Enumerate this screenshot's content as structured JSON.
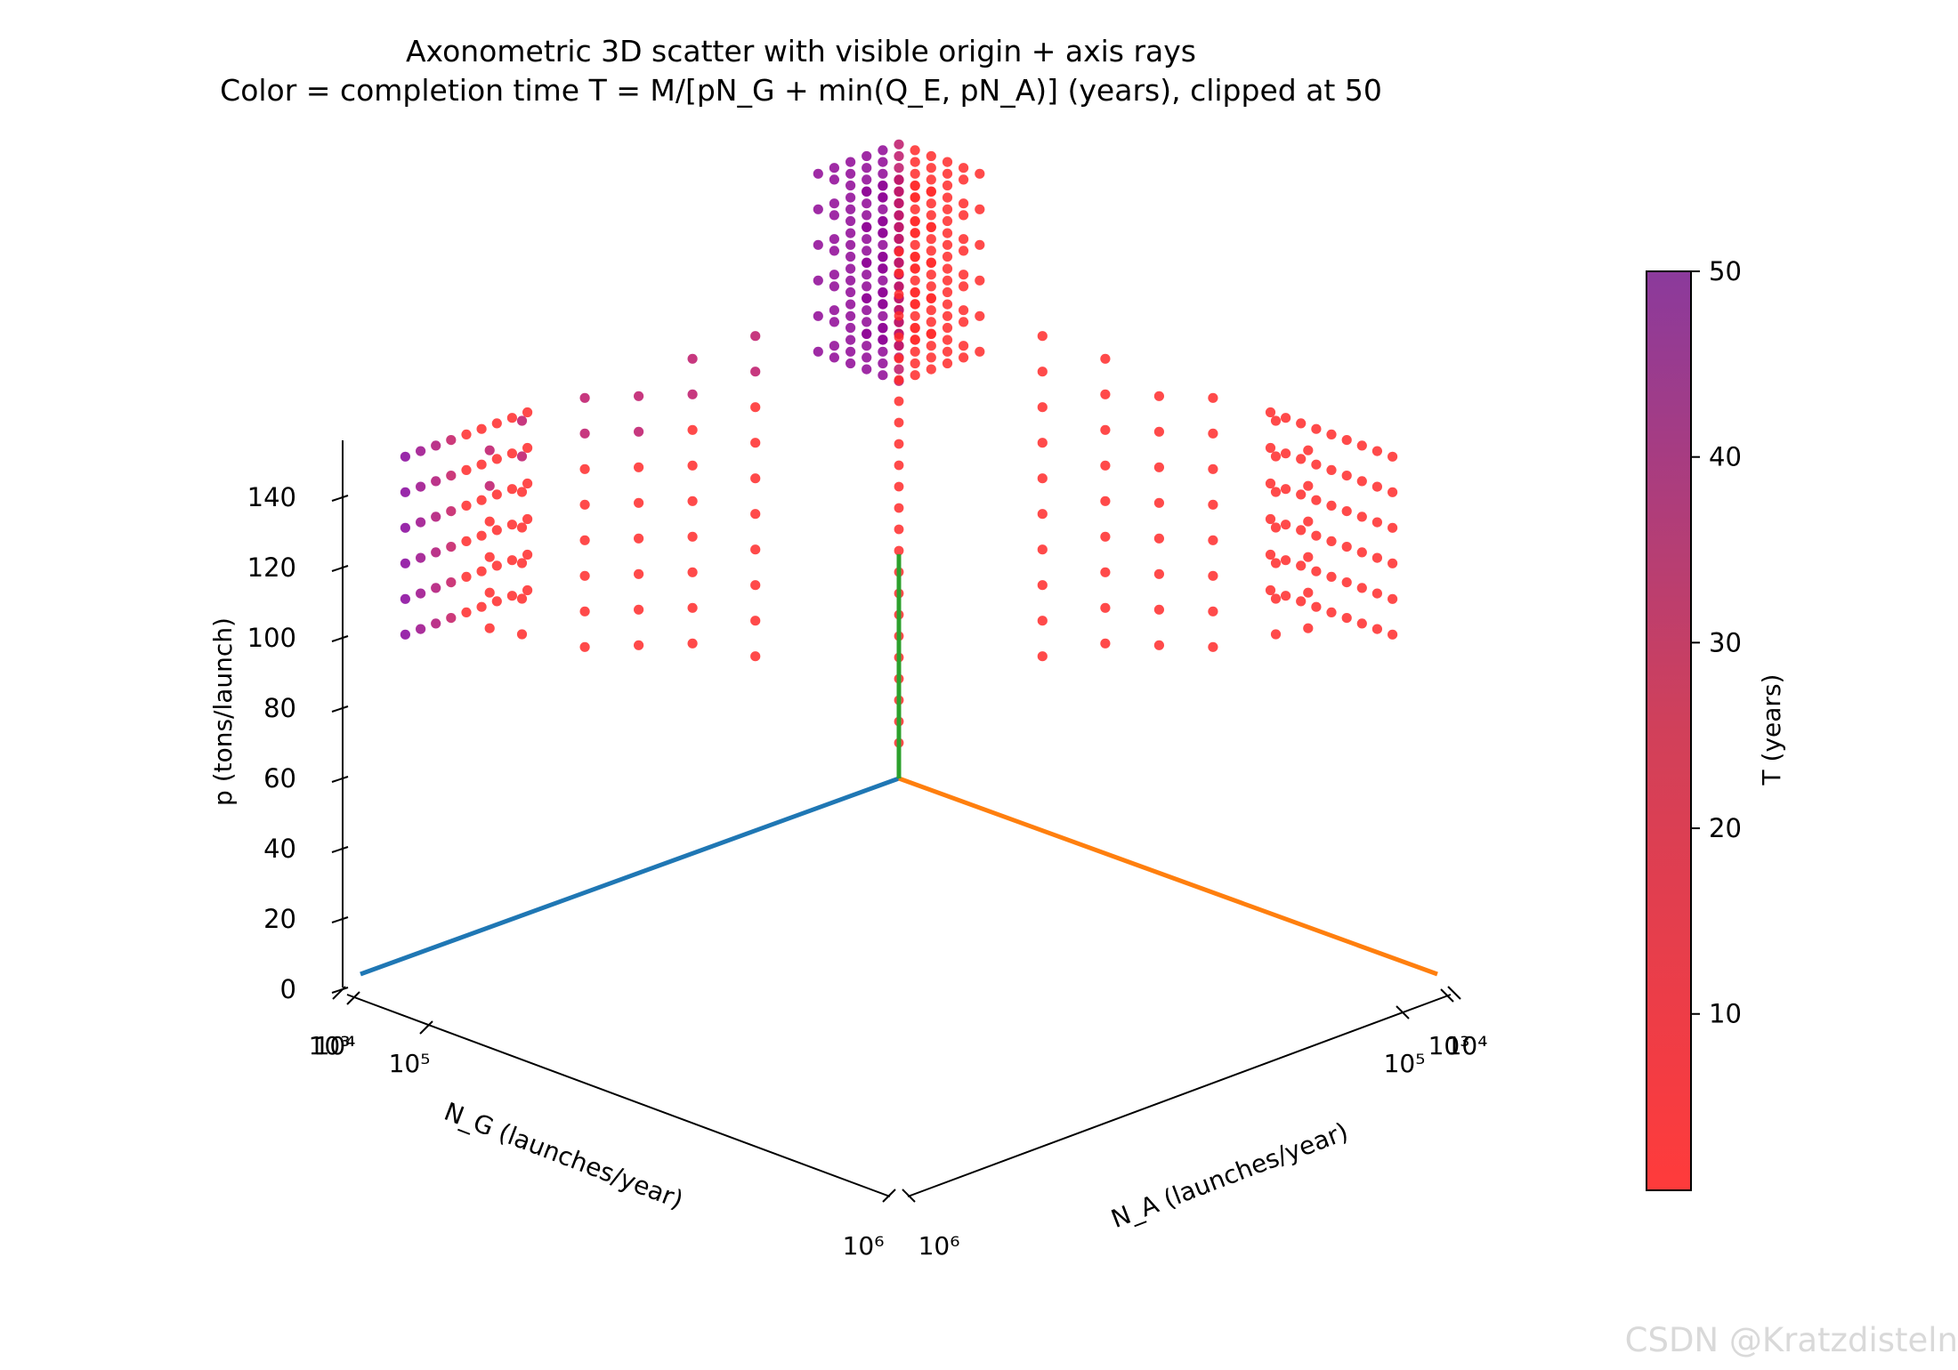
{
  "chart_data": {
    "type": "scatter",
    "projection": "axonometric-3d",
    "title": "Axonometric 3D scatter with visible origin + axis rays",
    "subtitle": "Color = completion time T = M/[pN_G + min(Q_E, pN_A)] (years), clipped at 50",
    "xlabel": "N_G (launches/year)",
    "ylabel": "N_A (launches/year)",
    "zlabel": "p (tons/launch)",
    "x_scale": "log",
    "y_scale": "log",
    "xlim": [
      1000,
      1000000
    ],
    "ylim": [
      1000,
      1000000
    ],
    "zlim": [
      0,
      150
    ],
    "x_ticks": [
      "10³",
      "10⁴",
      "10⁵",
      "10⁶"
    ],
    "y_ticks": [
      "10³",
      "10⁴",
      "10⁵",
      "10⁶"
    ],
    "z_ticks": [
      "0",
      "20",
      "40",
      "60",
      "80",
      "100",
      "120",
      "140"
    ],
    "p_levels": [
      50,
      70,
      90,
      110,
      120,
      130,
      140,
      150
    ],
    "colorbar": {
      "label": "T (years)",
      "min": 0.5,
      "max": 50,
      "ticks": [
        "10",
        "20",
        "30",
        "40",
        "50"
      ],
      "clip": 50,
      "color_low": "#ff3b3b",
      "color_high": "#8b3a9c"
    },
    "axis_rays": [
      {
        "axis": "N_G",
        "color": "#1f77b4"
      },
      {
        "axis": "N_A",
        "color": "#ff7f0e"
      },
      {
        "axis": "p",
        "color": "#2ca02c"
      }
    ],
    "point_colors": {
      "fast": "#ff2a2a",
      "slow": "#7a00a8"
    }
  },
  "watermark": "CSDN @Kratzdisteln"
}
